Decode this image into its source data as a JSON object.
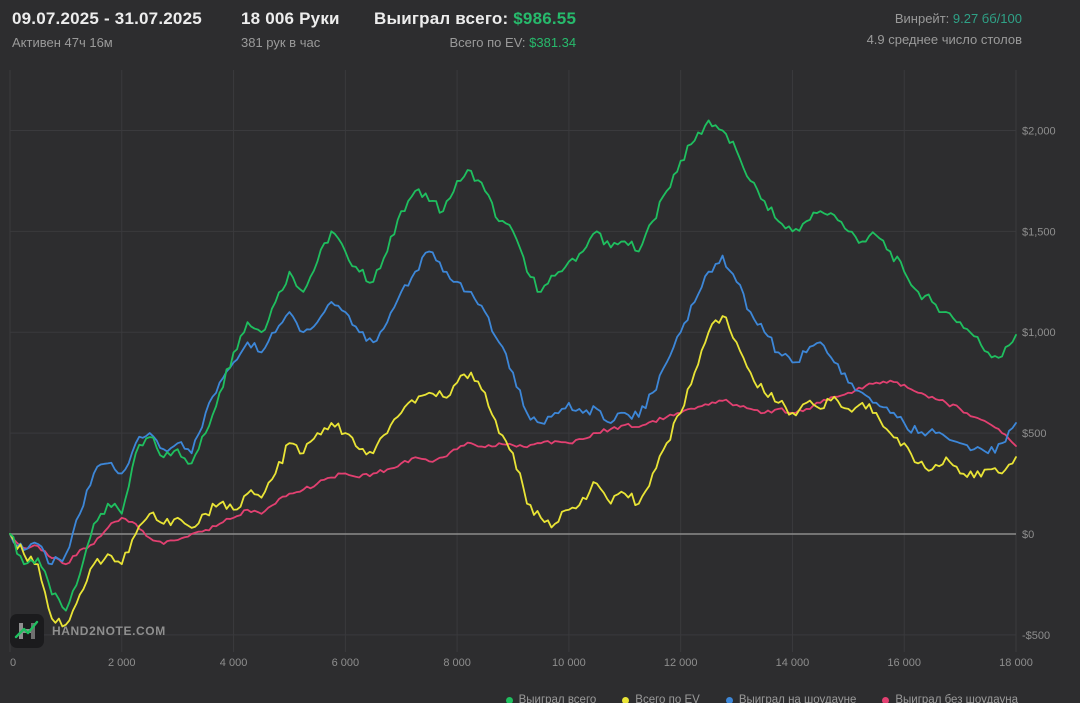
{
  "header": {
    "date_range": "09.07.2025 - 31.07.2025",
    "active_time": "Активен 47ч 16м",
    "hands": "18 006 Руки",
    "hands_per_hour": "381 рук в час",
    "won_total_label": "Выиграл всего:",
    "won_total_value": "$986.55",
    "ev_total_label": "Всего по EV:",
    "ev_total_value": "$381.34",
    "winrate_label": "Винрейт:",
    "winrate_value": "9.27 бб/100",
    "avg_tables": "4.9 среднее число столов"
  },
  "footer": {
    "logo_text": "HAND2NOTE.COM"
  },
  "colors": {
    "background": "#2d2d2f",
    "grid": "#3a3a3d",
    "zero_line": "#8c8c8c",
    "axis_text": "#8e8e8e",
    "stat_green": "#27ba6c",
    "winrate_teal": "#2fa287"
  },
  "chart_data": {
    "type": "line",
    "xlabel": "",
    "ylabel": "",
    "xlim": [
      0,
      18000
    ],
    "ylim": [
      -600,
      2275
    ],
    "grid": true,
    "legend_position": "bottom-right",
    "x_start": 0,
    "x_step": 250,
    "x_ticks": [
      0,
      2000,
      4000,
      6000,
      8000,
      10000,
      12000,
      14000,
      16000,
      18000
    ],
    "x_tick_labels": [
      "0",
      "2 000",
      "4 000",
      "6 000",
      "8 000",
      "10 000",
      "12 000",
      "14 000",
      "16 000",
      "18 000"
    ],
    "y_ticks": [
      -500,
      0,
      500,
      1000,
      1500,
      2000
    ],
    "y_tick_labels": [
      "-$500",
      "$0",
      "$500",
      "$1,000",
      "$1,500",
      "$2,000"
    ],
    "series": [
      {
        "name": "Выиграл всего",
        "color": "#1fbf5f",
        "values": [
          0,
          -150,
          -120,
          -300,
          -380,
          -200,
          50,
          150,
          100,
          400,
          480,
          380,
          420,
          350,
          500,
          700,
          900,
          1050,
          1000,
          1150,
          1300,
          1200,
          1350,
          1500,
          1400,
          1300,
          1250,
          1400,
          1600,
          1700,
          1650,
          1600,
          1750,
          1800,
          1700,
          1550,
          1500,
          1300,
          1200,
          1280,
          1350,
          1400,
          1500,
          1420,
          1450,
          1400,
          1550,
          1700,
          1850,
          1950,
          2050,
          2000,
          1900,
          1750,
          1650,
          1550,
          1500,
          1550,
          1600,
          1580,
          1500,
          1450,
          1480,
          1400,
          1300,
          1200,
          1150,
          1100,
          1050,
          980,
          900,
          880,
          986.55
        ]
      },
      {
        "name": "Всего по EV",
        "color": "#e9e436",
        "values": [
          0,
          -100,
          -150,
          -420,
          -450,
          -300,
          -150,
          -100,
          -150,
          0,
          100,
          50,
          80,
          30,
          100,
          150,
          120,
          200,
          180,
          300,
          450,
          400,
          500,
          550,
          500,
          420,
          400,
          500,
          600,
          650,
          700,
          680,
          750,
          800,
          700,
          500,
          400,
          150,
          80,
          50,
          120,
          180,
          250,
          150,
          200,
          150,
          300,
          450,
          600,
          800,
          1000,
          1080,
          950,
          800,
          700,
          650,
          600,
          650,
          620,
          680,
          620,
          650,
          600,
          500,
          450,
          350,
          320,
          380,
          300,
          280,
          320,
          300,
          381.34
        ]
      },
      {
        "name": "Выиграл на шоудауне",
        "color": "#3d87d8",
        "values": [
          0,
          -80,
          -50,
          -150,
          -100,
          100,
          300,
          350,
          300,
          450,
          500,
          420,
          450,
          400,
          600,
          750,
          850,
          950,
          900,
          1000,
          1100,
          1000,
          1050,
          1150,
          1100,
          1000,
          950,
          1050,
          1200,
          1300,
          1400,
          1300,
          1250,
          1200,
          1100,
          950,
          800,
          600,
          550,
          600,
          650,
          600,
          620,
          550,
          600,
          580,
          700,
          850,
          1000,
          1150,
          1300,
          1380,
          1250,
          1100,
          1000,
          900,
          850,
          900,
          950,
          850,
          750,
          700,
          650,
          600,
          550,
          500,
          520,
          480,
          450,
          420,
          400,
          450,
          550
        ]
      },
      {
        "name": "Выиграл без шоудауна",
        "color": "#e24071",
        "values": [
          0,
          -70,
          -60,
          -120,
          -150,
          -80,
          -50,
          30,
          80,
          50,
          -20,
          -50,
          -30,
          0,
          20,
          50,
          80,
          120,
          100,
          150,
          200,
          220,
          250,
          280,
          300,
          280,
          300,
          320,
          350,
          380,
          360,
          380,
          420,
          450,
          430,
          450,
          440,
          430,
          450,
          460,
          450,
          470,
          500,
          520,
          540,
          530,
          560,
          580,
          600,
          620,
          640,
          660,
          640,
          620,
          600,
          620,
          600,
          620,
          650,
          680,
          700,
          720,
          750,
          760,
          740,
          700,
          680,
          650,
          620,
          580,
          550,
          500,
          436
        ]
      }
    ]
  }
}
